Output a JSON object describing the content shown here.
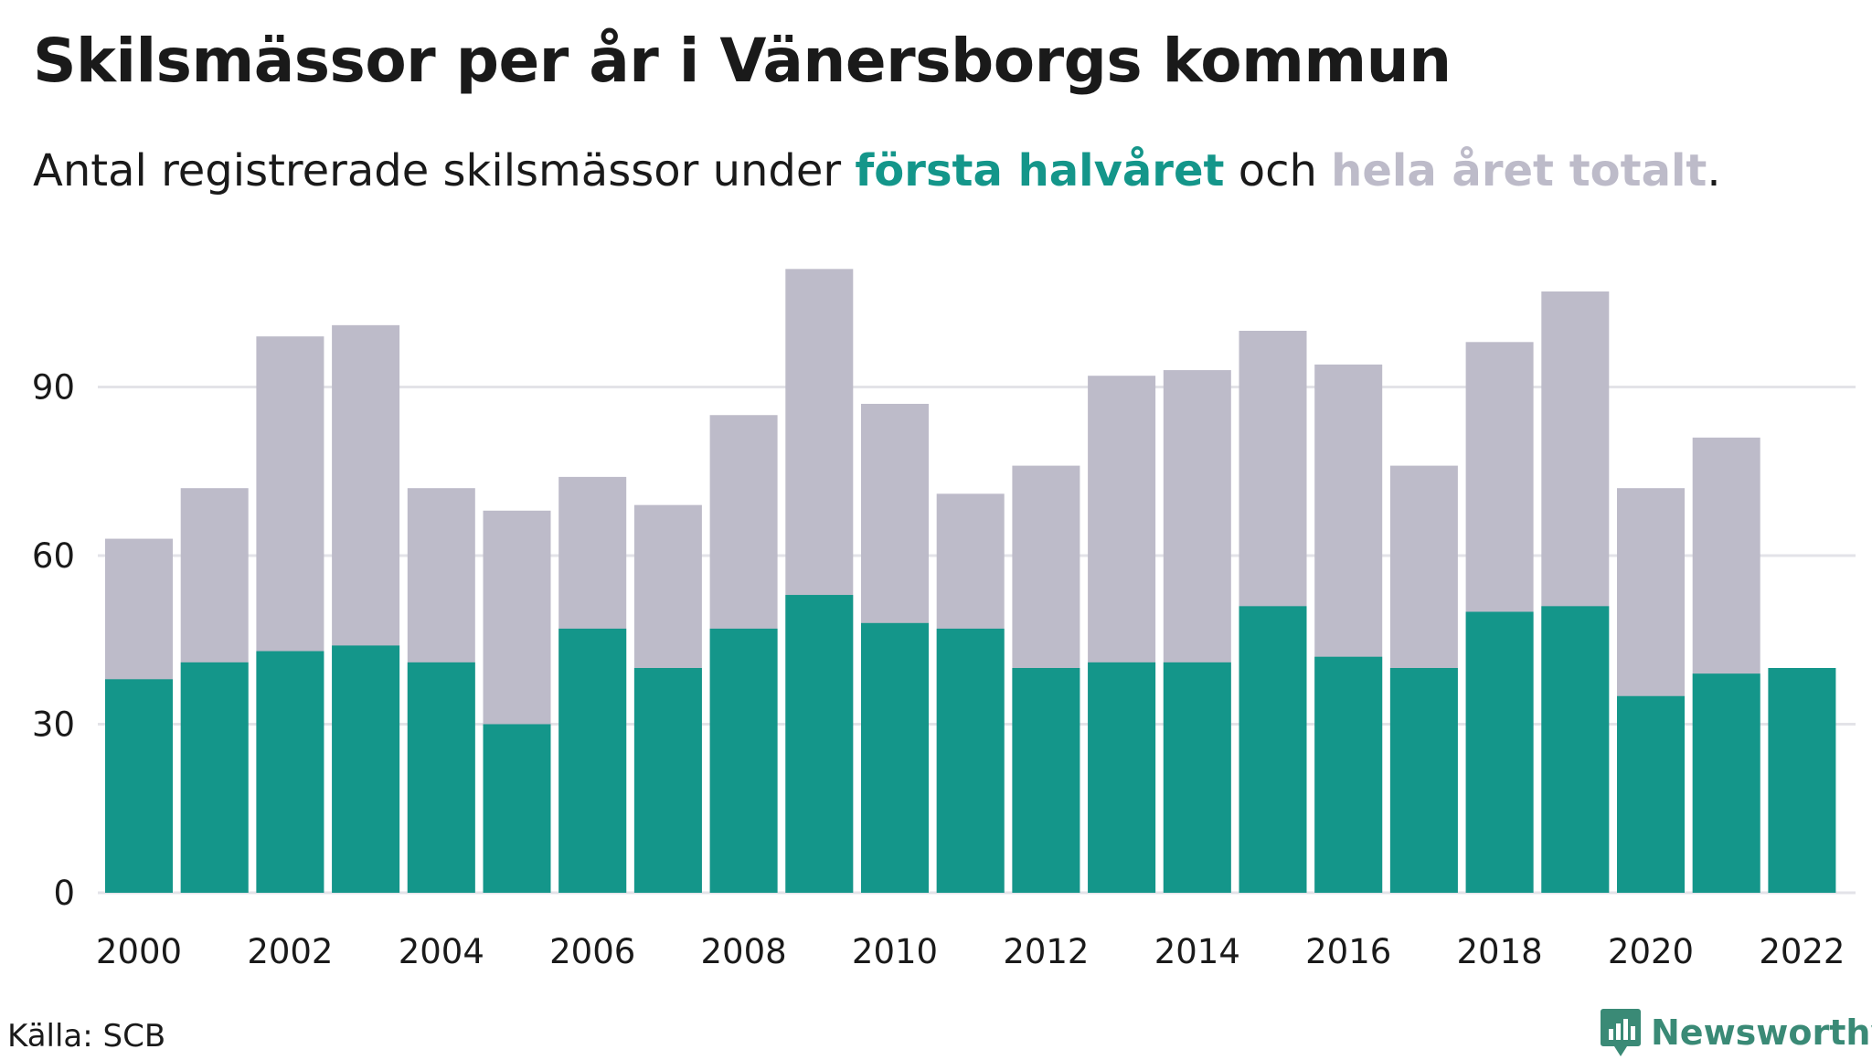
{
  "title": "Skilsmässor per år i Vänersborgs kommun",
  "subtitle": {
    "prefix": "Antal registrerade skilsmässor under ",
    "highlight_first": "första halvåret",
    "middle": " och ",
    "highlight_total": "hela året totalt",
    "suffix": "."
  },
  "source": "Källa: SCB",
  "brand": {
    "name": "Newsworthy",
    "icon": "newsworthy-logo-icon"
  },
  "colors": {
    "first_half": "#14968a",
    "full_year": "#bdbbc9",
    "grid": "#e3e3e8",
    "brand": "#3a8a76"
  },
  "chart_data": {
    "type": "bar",
    "stacking": "overlay",
    "categories": [
      "2000",
      "2001",
      "2002",
      "2003",
      "2004",
      "2005",
      "2006",
      "2007",
      "2008",
      "2009",
      "2010",
      "2011",
      "2012",
      "2013",
      "2014",
      "2015",
      "2016",
      "2017",
      "2018",
      "2019",
      "2020",
      "2021",
      "2022"
    ],
    "x_tick_labels": [
      "2000",
      "2002",
      "2004",
      "2006",
      "2008",
      "2010",
      "2012",
      "2014",
      "2016",
      "2018",
      "2020",
      "2022"
    ],
    "series": [
      {
        "name": "hela året totalt",
        "values": [
          63,
          72,
          99,
          101,
          72,
          68,
          74,
          69,
          85,
          111,
          87,
          71,
          76,
          92,
          93,
          100,
          94,
          76,
          98,
          107,
          72,
          81,
          null
        ]
      },
      {
        "name": "första halvåret",
        "values": [
          38,
          41,
          43,
          44,
          41,
          30,
          47,
          40,
          47,
          53,
          48,
          47,
          40,
          41,
          41,
          51,
          42,
          40,
          50,
          51,
          35,
          39,
          40
        ]
      }
    ],
    "y_ticks": [
      0,
      30,
      60,
      90
    ],
    "ylim": [
      0,
      111
    ],
    "grid": true,
    "xlabel": "",
    "ylabel": ""
  }
}
